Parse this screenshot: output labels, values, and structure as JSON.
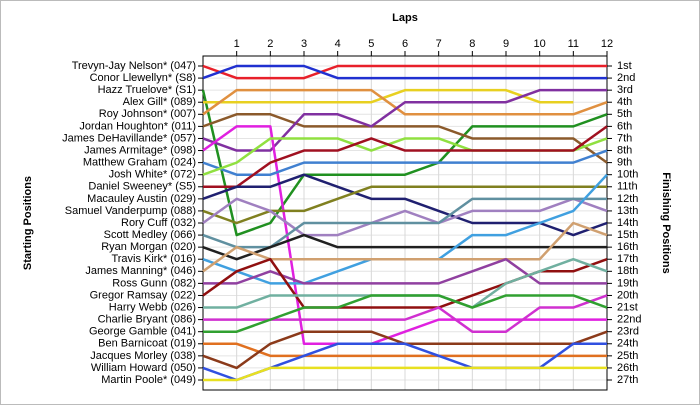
{
  "chart_data": {
    "type": "line",
    "title": "Laps",
    "ylabel": "Starting Positions",
    "y2label": "Finishing Positions",
    "x": [
      0,
      1,
      2,
      3,
      4,
      5,
      6,
      7,
      8,
      9,
      10,
      11,
      12
    ],
    "xlim": [
      0,
      12
    ],
    "xticks": [
      1,
      2,
      3,
      4,
      5,
      6,
      7,
      8,
      9,
      10,
      11,
      12
    ],
    "ylim": [
      1,
      27
    ],
    "yticks": [
      {
        "value": 1,
        "label": "1st"
      },
      {
        "value": 2,
        "label": "2nd"
      },
      {
        "value": 3,
        "label": "3rd"
      },
      {
        "value": 4,
        "label": "4th"
      },
      {
        "value": 5,
        "label": "5th"
      },
      {
        "value": 6,
        "label": "6th"
      },
      {
        "value": 7,
        "label": "7th"
      },
      {
        "value": 8,
        "label": "8th"
      },
      {
        "value": 9,
        "label": "9th"
      },
      {
        "value": 10,
        "label": "10th"
      },
      {
        "value": 11,
        "label": "11th"
      },
      {
        "value": 12,
        "label": "12th"
      },
      {
        "value": 13,
        "label": "13th"
      },
      {
        "value": 14,
        "label": "14th"
      },
      {
        "value": 15,
        "label": "15th"
      },
      {
        "value": 16,
        "label": "16th"
      },
      {
        "value": 17,
        "label": "17th"
      },
      {
        "value": 18,
        "label": "18th"
      },
      {
        "value": 19,
        "label": "19th"
      },
      {
        "value": 20,
        "label": "20th"
      },
      {
        "value": 21,
        "label": "21st"
      },
      {
        "value": 22,
        "label": "22nd"
      },
      {
        "value": 23,
        "label": "23rd"
      },
      {
        "value": 24,
        "label": "24th"
      },
      {
        "value": 25,
        "label": "25th"
      },
      {
        "value": 26,
        "label": "26th"
      },
      {
        "value": 27,
        "label": "27th"
      }
    ],
    "grid": true,
    "series": [
      {
        "name": "Trevyn-Jay Nelson* (047)",
        "color": "#e8202a",
        "values": [
          1,
          2,
          2,
          2,
          1,
          1,
          1,
          1,
          1,
          1,
          1,
          1,
          1
        ]
      },
      {
        "name": "Conor Llewellyn* (S8)",
        "color": "#2030d0",
        "values": [
          2,
          1,
          1,
          1,
          2,
          2,
          2,
          2,
          2,
          2,
          2,
          2,
          2
        ]
      },
      {
        "name": "Hazz Truelove* (S1)",
        "color": "#209020",
        "values": [
          3,
          15,
          14,
          10,
          10,
          10,
          10,
          9,
          6,
          6,
          6,
          6,
          5
        ]
      },
      {
        "name": "Alex Gill* (089)",
        "color": "#e8d020",
        "values": [
          4,
          4,
          4,
          4,
          4,
          4,
          3,
          3,
          3,
          3,
          4,
          4,
          null
        ]
      },
      {
        "name": "Roy Johnson* (007)",
        "color": "#e09040",
        "values": [
          5,
          3,
          3,
          3,
          3,
          3,
          5,
          5,
          5,
          5,
          5,
          5,
          4
        ]
      },
      {
        "name": "Jordan Houghton* (011)",
        "color": "#8b5a2b",
        "values": [
          6,
          5,
          5,
          6,
          6,
          6,
          6,
          6,
          7,
          7,
          7,
          7,
          9
        ]
      },
      {
        "name": "James DeHavillande* (057)",
        "color": "#8030a0",
        "values": [
          7,
          8,
          8,
          5,
          5,
          6,
          4,
          4,
          4,
          4,
          3,
          3,
          3
        ]
      },
      {
        "name": "James Armitage* (098)",
        "color": "#e020e0",
        "values": [
          8,
          6,
          6,
          24,
          24,
          24,
          23,
          22,
          22,
          22,
          22,
          22,
          22
        ]
      },
      {
        "name": "Matthew Graham (024)",
        "color": "#4080d0",
        "values": [
          9,
          10,
          10,
          9,
          9,
          9,
          9,
          9,
          9,
          9,
          9,
          9,
          8
        ]
      },
      {
        "name": "Josh White* (072)",
        "color": "#90e040",
        "values": [
          10,
          9,
          7,
          7,
          7,
          8,
          7,
          7,
          8,
          8,
          8,
          8,
          7
        ]
      },
      {
        "name": "Daniel Sweeney* (S5)",
        "color": "#a01020",
        "values": [
          11,
          11,
          9,
          8,
          8,
          7,
          8,
          8,
          8,
          8,
          8,
          8,
          6
        ]
      },
      {
        "name": "Macauley Austin (029)",
        "color": "#202070",
        "values": [
          12,
          11,
          11,
          10,
          11,
          12,
          12,
          13,
          14,
          14,
          14,
          15,
          14
        ]
      },
      {
        "name": "Samuel Vanderpump (088)",
        "color": "#808020",
        "values": [
          13,
          14,
          13,
          13,
          12,
          11,
          11,
          11,
          11,
          11,
          11,
          11,
          11
        ]
      },
      {
        "name": "Rory Cuff (032)",
        "color": "#a080c0",
        "values": [
          14,
          12,
          13,
          15,
          15,
          14,
          13,
          14,
          13,
          13,
          13,
          12,
          13
        ]
      },
      {
        "name": "Scott Medley (066)",
        "color": "#6090a0",
        "values": [
          15,
          16,
          16,
          14,
          14,
          14,
          14,
          14,
          12,
          12,
          12,
          12,
          12
        ]
      },
      {
        "name": "Ryan Morgan (020)",
        "color": "#202020",
        "values": [
          16,
          17,
          16,
          15,
          16,
          16,
          16,
          16,
          16,
          16,
          16,
          16,
          16
        ]
      },
      {
        "name": "Travis Kirk* (016)",
        "color": "#40a0e0",
        "values": [
          17,
          18,
          19,
          19,
          18,
          17,
          17,
          17,
          15,
          15,
          14,
          13,
          10
        ]
      },
      {
        "name": "James Manning* (046)",
        "color": "#d0a070",
        "values": [
          18,
          16,
          17,
          17,
          17,
          17,
          17,
          17,
          17,
          17,
          17,
          14,
          15
        ]
      },
      {
        "name": "Ross Gunn (082)",
        "color": "#9040a0",
        "values": [
          19,
          19,
          18,
          19,
          19,
          19,
          19,
          19,
          18,
          17,
          19,
          19,
          19
        ]
      },
      {
        "name": "Gregor Ramsay (022)",
        "color": "#901010",
        "values": [
          20,
          18,
          17,
          21,
          21,
          21,
          21,
          21,
          20,
          19,
          18,
          18,
          17
        ]
      },
      {
        "name": "Harry Webb (026)",
        "color": "#70b0a0",
        "values": [
          21,
          21,
          20,
          20,
          20,
          20,
          20,
          20,
          21,
          19,
          18,
          17,
          18
        ]
      },
      {
        "name": "Charlie Bryant (086)",
        "color": "#d030d0",
        "values": [
          22,
          22,
          22,
          22,
          22,
          22,
          22,
          21,
          23,
          23,
          21,
          21,
          20
        ]
      },
      {
        "name": "George Gamble (041)",
        "color": "#30a030",
        "values": [
          23,
          23,
          22,
          21,
          21,
          20,
          20,
          20,
          21,
          20,
          20,
          20,
          21
        ]
      },
      {
        "name": "Ben Barnicoat (019)",
        "color": "#e07020",
        "values": [
          24,
          24,
          25,
          25,
          25,
          25,
          25,
          25,
          25,
          25,
          25,
          25,
          25
        ]
      },
      {
        "name": "Jacques Morley (038)",
        "color": "#8b3a1a",
        "values": [
          25,
          26,
          24,
          23,
          23,
          23,
          24,
          24,
          24,
          24,
          24,
          24,
          23
        ]
      },
      {
        "name": "William Howard (050)",
        "color": "#3050e0",
        "values": [
          26,
          27,
          26,
          25,
          24,
          24,
          24,
          25,
          26,
          26,
          26,
          24,
          24
        ]
      },
      {
        "name": "Martin Poole* (049)",
        "color": "#e8e020",
        "values": [
          27,
          27,
          26,
          26,
          26,
          26,
          26,
          26,
          26,
          26,
          26,
          26,
          26
        ]
      }
    ]
  }
}
